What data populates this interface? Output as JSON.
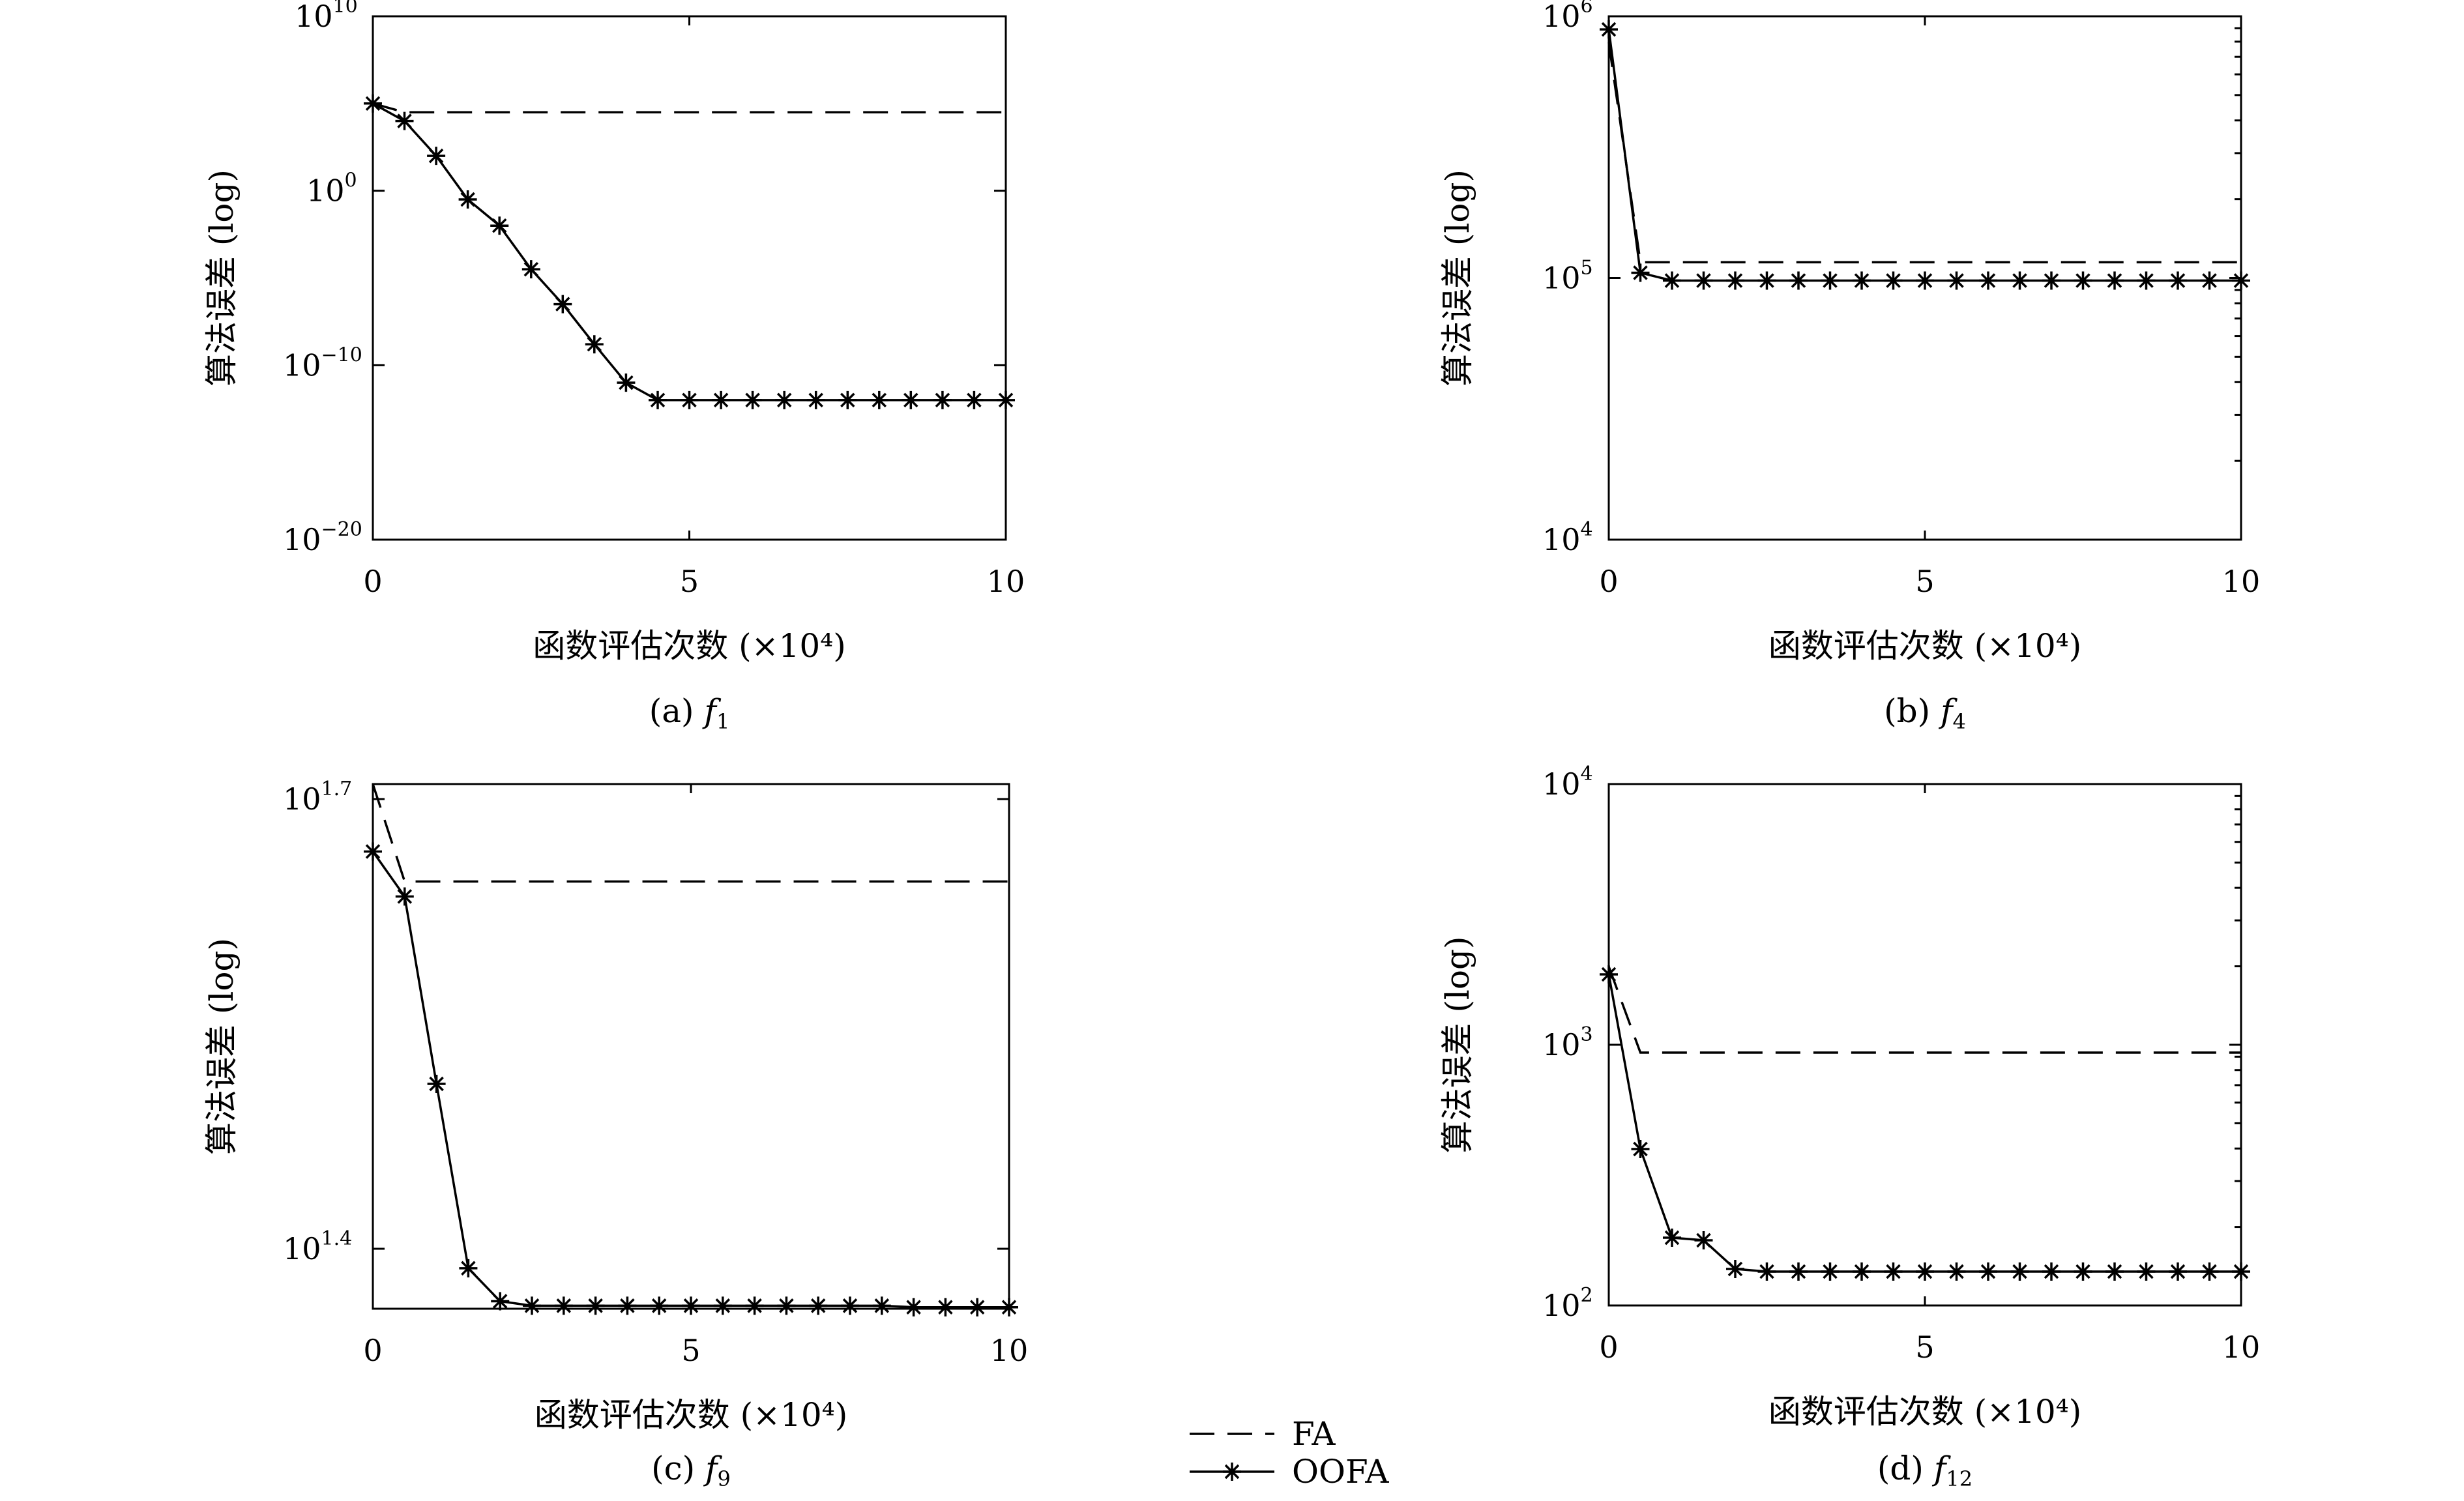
{
  "legend": {
    "position": "bottom-center",
    "entries": [
      {
        "label": "FA",
        "style": "dashed"
      },
      {
        "label": "OOFA",
        "style": "solid-star"
      }
    ]
  },
  "chart_data": [
    {
      "type": "line",
      "caption": {
        "prefix": "(a) ",
        "func": "f",
        "sub": "1"
      },
      "xlabel": "函数评估次数 (×10⁴)",
      "ylabel": "算法误差 (log)",
      "xlim": [
        0,
        10
      ],
      "yscale": "log",
      "ylim_exp": [
        -20,
        10
      ],
      "xticks": [
        0,
        5,
        10
      ],
      "yticks": [
        {
          "base": "10",
          "exp": "10"
        },
        {
          "base": "10",
          "exp": "0"
        },
        {
          "base": "10",
          "exp": "−10"
        },
        {
          "base": "10",
          "exp": "−20"
        }
      ],
      "ytick_exps": [
        10,
        0,
        -10,
        -20
      ],
      "series": [
        {
          "name": "FA",
          "x": [
            0,
            0.5,
            10
          ],
          "log10_y": [
            5,
            4.5,
            4.5
          ]
        },
        {
          "name": "OOFA",
          "x": [
            0,
            0.5,
            1,
            1.5,
            2,
            2.5,
            3,
            3.5,
            4,
            4.5,
            5,
            5.5,
            6,
            6.5,
            7,
            7.5,
            8,
            8.5,
            9,
            9.5,
            10
          ],
          "log10_y": [
            5,
            4,
            2,
            -0.5,
            -2,
            -4.5,
            -6.5,
            -8.8,
            -11,
            -12,
            -12,
            -12,
            -12,
            -12,
            -12,
            -12,
            -12,
            -12,
            -12,
            -12,
            -12
          ]
        }
      ]
    },
    {
      "type": "line",
      "caption": {
        "prefix": "(b) ",
        "func": "f",
        "sub": "4"
      },
      "xlabel": "函数评估次数 (×10⁴)",
      "ylabel": "算法误差 (log)",
      "xlim": [
        0,
        10
      ],
      "yscale": "log",
      "ylim_exp": [
        4,
        6
      ],
      "xticks": [
        0,
        5,
        10
      ],
      "yticks": [
        {
          "base": "10",
          "exp": "6"
        },
        {
          "base": "10",
          "exp": "5"
        },
        {
          "base": "10",
          "exp": "4"
        }
      ],
      "ytick_exps": [
        6,
        5,
        4
      ],
      "series": [
        {
          "name": "FA",
          "x": [
            0,
            0.5,
            10
          ],
          "log10_y": [
            5.9,
            5.06,
            5.06
          ]
        },
        {
          "name": "OOFA",
          "x": [
            0,
            0.5,
            1,
            1.5,
            2,
            2.5,
            3,
            3.5,
            4,
            4.5,
            5,
            5.5,
            6,
            6.5,
            7,
            7.5,
            8,
            8.5,
            9,
            9.5,
            10
          ],
          "log10_y": [
            5.95,
            5.02,
            4.99,
            4.99,
            4.99,
            4.99,
            4.99,
            4.99,
            4.99,
            4.99,
            4.99,
            4.99,
            4.99,
            4.99,
            4.99,
            4.99,
            4.99,
            4.99,
            4.99,
            4.99,
            4.99
          ]
        }
      ]
    },
    {
      "type": "line",
      "caption": {
        "prefix": "(c) ",
        "func": "f",
        "sub": "9"
      },
      "xlabel": "函数评估次数 (×10⁴)",
      "ylabel": "算法误差 (log)",
      "xlim": [
        0,
        10
      ],
      "yscale": "log",
      "ylim_exp": [
        1.36,
        1.71
      ],
      "xticks": [
        0,
        5,
        10
      ],
      "yticks": [
        {
          "base": "10",
          "exp": "1.7"
        },
        {
          "base": "10",
          "exp": "1.4"
        }
      ],
      "ytick_exps": [
        1.7,
        1.4
      ],
      "series": [
        {
          "name": "FA",
          "x": [
            0,
            0.5,
            10
          ],
          "log10_y": [
            1.71,
            1.645,
            1.645
          ]
        },
        {
          "name": "OOFA",
          "x": [
            0,
            0.5,
            1,
            1.5,
            2,
            2.5,
            3,
            3.5,
            4,
            4.5,
            5,
            5.5,
            6,
            6.5,
            7,
            7.5,
            8,
            8.5,
            9,
            9.5,
            10
          ],
          "log10_y": [
            1.665,
            1.635,
            1.51,
            1.387,
            1.365,
            1.362,
            1.362,
            1.362,
            1.362,
            1.362,
            1.362,
            1.362,
            1.362,
            1.362,
            1.362,
            1.362,
            1.362,
            1.361,
            1.361,
            1.361,
            1.361
          ]
        }
      ]
    },
    {
      "type": "line",
      "caption": {
        "prefix": "(d) ",
        "func": "f",
        "sub": "12"
      },
      "xlabel": "函数评估次数 (×10⁴)",
      "ylabel": "算法误差 (log)",
      "xlim": [
        0,
        10
      ],
      "yscale": "log",
      "ylim_exp": [
        2,
        4
      ],
      "xticks": [
        0,
        5,
        10
      ],
      "yticks": [
        {
          "base": "10",
          "exp": "4"
        },
        {
          "base": "10",
          "exp": "3"
        },
        {
          "base": "10",
          "exp": "2"
        }
      ],
      "ytick_exps": [
        4,
        3,
        2
      ],
      "series": [
        {
          "name": "FA",
          "x": [
            0,
            0.5,
            10
          ],
          "log10_y": [
            3.3,
            2.97,
            2.97
          ]
        },
        {
          "name": "OOFA",
          "x": [
            0,
            0.5,
            1,
            1.5,
            2,
            2.5,
            3,
            3.5,
            4,
            4.5,
            5,
            5.5,
            6,
            6.5,
            7,
            7.5,
            8,
            8.5,
            9,
            9.5,
            10
          ],
          "log10_y": [
            3.27,
            2.6,
            2.26,
            2.25,
            2.14,
            2.13,
            2.13,
            2.13,
            2.13,
            2.13,
            2.13,
            2.13,
            2.13,
            2.13,
            2.13,
            2.13,
            2.13,
            2.13,
            2.13,
            2.13,
            2.13
          ]
        }
      ]
    }
  ]
}
